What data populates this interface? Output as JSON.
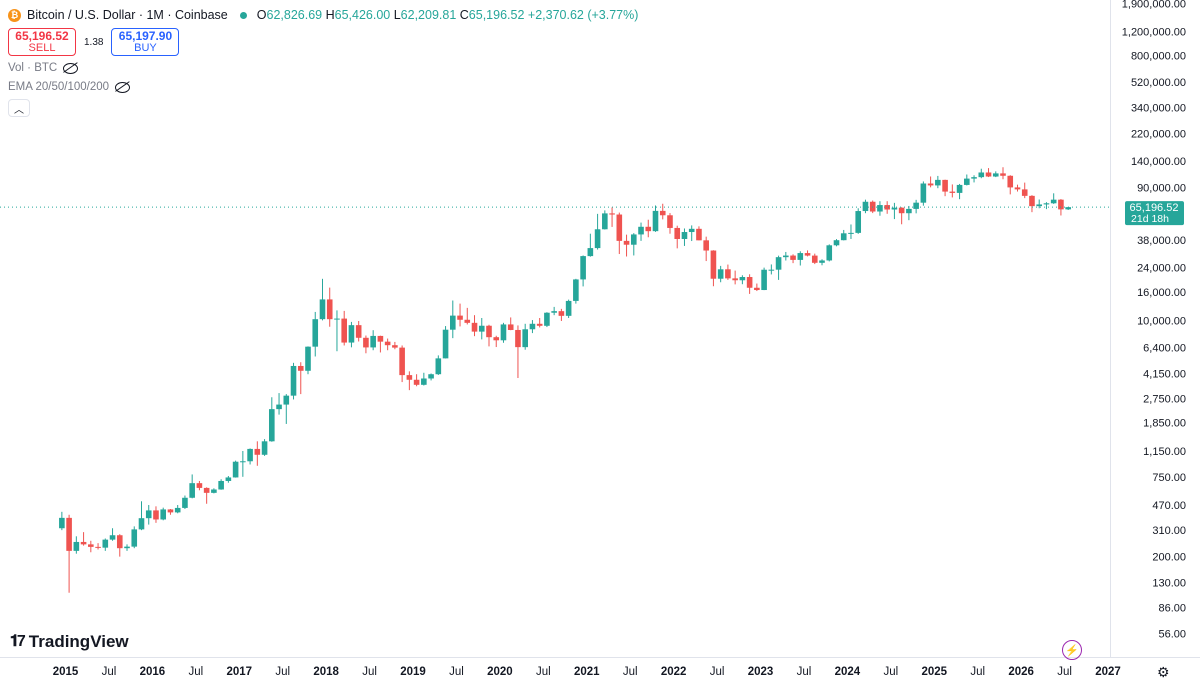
{
  "header": {
    "symbol_title": "Bitcoin / U.S. Dollar · 1M · Coinbase",
    "open_label": "O",
    "open": "62,826.69",
    "high_label": "H",
    "high": "65,426.00",
    "low_label": "L",
    "low": "62,209.81",
    "close_label": "C",
    "close": "65,196.52",
    "change": "+2,370.62 (+3.77%)"
  },
  "trade": {
    "sell_price": "65,196.52",
    "sell_label": "SELL",
    "spread": "1.38",
    "buy_price": "65,197.90",
    "buy_label": "BUY"
  },
  "indicators": {
    "vol": "Vol · BTC",
    "ema": "EMA 20/50/100/200"
  },
  "branding": {
    "logo_text": "TradingView"
  },
  "colors": {
    "up": "#26a69a",
    "down": "#ef5350",
    "price_line": "#26a69a",
    "grid": "#f0f3fa"
  },
  "chart_data": {
    "type": "candlestick",
    "scale": "log",
    "y_ticks": [
      56,
      86,
      130,
      200,
      310,
      470,
      750,
      1150,
      1850,
      2750,
      4150,
      6400,
      10000,
      16000,
      24000,
      38000,
      90000,
      140000,
      220000,
      340000,
      520000,
      800000,
      1200000,
      1900000
    ],
    "y_tick_labels": [
      "56.00",
      "86.00",
      "130.00",
      "200.00",
      "310.00",
      "470.00",
      "750.00",
      "1,150.00",
      "1,850.00",
      "2,750.00",
      "4,150.00",
      "6,400.00",
      "10,000.00",
      "16,000.00",
      "24,000.00",
      "38,000.00",
      "90,000.00",
      "140,000.00",
      "220,000.00",
      "340,000.00",
      "520,000.00",
      "800,000.00",
      "1,200,000.00",
      "1,900,000.00"
    ],
    "x_ticks": [
      "2015-01",
      "2015-07",
      "2016-01",
      "2016-07",
      "2017-01",
      "2017-07",
      "2018-01",
      "2018-07",
      "2019-01",
      "2019-07",
      "2020-01",
      "2020-07",
      "2021-01",
      "2021-07",
      "2022-01",
      "2022-07",
      "2023-01",
      "2023-07",
      "2024-01",
      "2024-07",
      "2025-01",
      "2025-07",
      "2026-01",
      "2026-07",
      "2027-01"
    ],
    "x_tick_labels": [
      "2015",
      "Jul",
      "2016",
      "Jul",
      "2017",
      "Jul",
      "2018",
      "Jul",
      "2019",
      "Jul",
      "2020",
      "Jul",
      "2021",
      "Jul",
      "2022",
      "Jul",
      "2023",
      "Jul",
      "2024",
      "Jul",
      "2025",
      "Jul",
      "2026",
      "Jul",
      "2027"
    ],
    "last_price": {
      "value": 65196.52,
      "label": "65,196.52",
      "countdown": "21d 18h"
    },
    "candles": [
      {
        "month": "2014-12",
        "o": 320,
        "h": 420,
        "l": 310,
        "c": 380
      },
      {
        "month": "2015-01",
        "o": 380,
        "h": 400,
        "l": 110,
        "c": 220
      },
      {
        "month": "2015-02",
        "o": 220,
        "h": 280,
        "l": 210,
        "c": 255
      },
      {
        "month": "2015-03",
        "o": 255,
        "h": 300,
        "l": 240,
        "c": 245
      },
      {
        "month": "2015-04",
        "o": 245,
        "h": 260,
        "l": 215,
        "c": 235
      },
      {
        "month": "2015-05",
        "o": 235,
        "h": 250,
        "l": 225,
        "c": 232
      },
      {
        "month": "2015-06",
        "o": 232,
        "h": 270,
        "l": 220,
        "c": 265
      },
      {
        "month": "2015-07",
        "o": 265,
        "h": 320,
        "l": 260,
        "c": 285
      },
      {
        "month": "2015-08",
        "o": 285,
        "h": 290,
        "l": 200,
        "c": 230
      },
      {
        "month": "2015-09",
        "o": 230,
        "h": 245,
        "l": 220,
        "c": 236
      },
      {
        "month": "2015-10",
        "o": 236,
        "h": 330,
        "l": 230,
        "c": 314
      },
      {
        "month": "2015-11",
        "o": 314,
        "h": 500,
        "l": 310,
        "c": 378
      },
      {
        "month": "2015-12",
        "o": 378,
        "h": 470,
        "l": 340,
        "c": 430
      },
      {
        "month": "2016-01",
        "o": 430,
        "h": 460,
        "l": 350,
        "c": 370
      },
      {
        "month": "2016-02",
        "o": 370,
        "h": 450,
        "l": 365,
        "c": 437
      },
      {
        "month": "2016-03",
        "o": 437,
        "h": 440,
        "l": 400,
        "c": 416
      },
      {
        "month": "2016-04",
        "o": 416,
        "h": 470,
        "l": 410,
        "c": 448
      },
      {
        "month": "2016-05",
        "o": 448,
        "h": 550,
        "l": 440,
        "c": 530
      },
      {
        "month": "2016-06",
        "o": 530,
        "h": 780,
        "l": 525,
        "c": 675
      },
      {
        "month": "2016-07",
        "o": 675,
        "h": 700,
        "l": 600,
        "c": 624
      },
      {
        "month": "2016-08",
        "o": 624,
        "h": 630,
        "l": 480,
        "c": 575
      },
      {
        "month": "2016-09",
        "o": 575,
        "h": 620,
        "l": 570,
        "c": 608
      },
      {
        "month": "2016-10",
        "o": 608,
        "h": 720,
        "l": 605,
        "c": 700
      },
      {
        "month": "2016-11",
        "o": 700,
        "h": 760,
        "l": 680,
        "c": 742
      },
      {
        "month": "2016-12",
        "o": 742,
        "h": 980,
        "l": 740,
        "c": 963
      },
      {
        "month": "2017-01",
        "o": 963,
        "h": 1150,
        "l": 750,
        "c": 970
      },
      {
        "month": "2017-02",
        "o": 970,
        "h": 1200,
        "l": 920,
        "c": 1190
      },
      {
        "month": "2017-03",
        "o": 1190,
        "h": 1350,
        "l": 900,
        "c": 1080
      },
      {
        "month": "2017-04",
        "o": 1080,
        "h": 1400,
        "l": 1060,
        "c": 1350
      },
      {
        "month": "2017-05",
        "o": 1350,
        "h": 2800,
        "l": 1340,
        "c": 2300
      },
      {
        "month": "2017-06",
        "o": 2300,
        "h": 3000,
        "l": 2100,
        "c": 2480
      },
      {
        "month": "2017-07",
        "o": 2480,
        "h": 2950,
        "l": 1800,
        "c": 2875
      },
      {
        "month": "2017-08",
        "o": 2875,
        "h": 4950,
        "l": 2700,
        "c": 4700
      },
      {
        "month": "2017-09",
        "o": 4700,
        "h": 5000,
        "l": 2950,
        "c": 4340
      },
      {
        "month": "2017-10",
        "o": 4340,
        "h": 6500,
        "l": 4100,
        "c": 6470
      },
      {
        "month": "2017-11",
        "o": 6470,
        "h": 11500,
        "l": 5500,
        "c": 10200
      },
      {
        "month": "2017-12",
        "o": 10200,
        "h": 19900,
        "l": 10000,
        "c": 14150
      },
      {
        "month": "2018-01",
        "o": 14150,
        "h": 17200,
        "l": 9000,
        "c": 10200
      },
      {
        "month": "2018-02",
        "o": 10200,
        "h": 11800,
        "l": 6000,
        "c": 10300
      },
      {
        "month": "2018-03",
        "o": 10300,
        "h": 11700,
        "l": 6600,
        "c": 6925
      },
      {
        "month": "2018-04",
        "o": 6925,
        "h": 9750,
        "l": 6400,
        "c": 9240
      },
      {
        "month": "2018-05",
        "o": 9240,
        "h": 9900,
        "l": 7050,
        "c": 7495
      },
      {
        "month": "2018-06",
        "o": 7495,
        "h": 7780,
        "l": 5800,
        "c": 6390
      },
      {
        "month": "2018-07",
        "o": 6390,
        "h": 8500,
        "l": 6100,
        "c": 7730
      },
      {
        "month": "2018-08",
        "o": 7730,
        "h": 7760,
        "l": 5880,
        "c": 7030
      },
      {
        "month": "2018-09",
        "o": 7030,
        "h": 7400,
        "l": 6100,
        "c": 6630
      },
      {
        "month": "2018-10",
        "o": 6630,
        "h": 7000,
        "l": 6200,
        "c": 6370
      },
      {
        "month": "2018-11",
        "o": 6370,
        "h": 6600,
        "l": 3600,
        "c": 4040
      },
      {
        "month": "2018-12",
        "o": 4040,
        "h": 4300,
        "l": 3150,
        "c": 3740
      },
      {
        "month": "2019-01",
        "o": 3740,
        "h": 4100,
        "l": 3360,
        "c": 3440
      },
      {
        "month": "2019-02",
        "o": 3440,
        "h": 4200,
        "l": 3400,
        "c": 3820
      },
      {
        "month": "2019-03",
        "o": 3820,
        "h": 4150,
        "l": 3700,
        "c": 4100
      },
      {
        "month": "2019-04",
        "o": 4100,
        "h": 5600,
        "l": 4050,
        "c": 5330
      },
      {
        "month": "2019-05",
        "o": 5330,
        "h": 9100,
        "l": 5320,
        "c": 8570
      },
      {
        "month": "2019-06",
        "o": 8570,
        "h": 13900,
        "l": 7450,
        "c": 10820
      },
      {
        "month": "2019-07",
        "o": 10820,
        "h": 13200,
        "l": 9050,
        "c": 10100
      },
      {
        "month": "2019-08",
        "o": 10100,
        "h": 12300,
        "l": 9350,
        "c": 9600
      },
      {
        "month": "2019-09",
        "o": 9600,
        "h": 10900,
        "l": 7700,
        "c": 8300
      },
      {
        "month": "2019-10",
        "o": 8300,
        "h": 10400,
        "l": 7300,
        "c": 9150
      },
      {
        "month": "2019-11",
        "o": 9150,
        "h": 9300,
        "l": 6500,
        "c": 7570
      },
      {
        "month": "2019-12",
        "o": 7570,
        "h": 7750,
        "l": 6430,
        "c": 7190
      },
      {
        "month": "2020-01",
        "o": 7190,
        "h": 9600,
        "l": 6900,
        "c": 9350
      },
      {
        "month": "2020-02",
        "o": 9350,
        "h": 10500,
        "l": 8500,
        "c": 8530
      },
      {
        "month": "2020-03",
        "o": 8530,
        "h": 9200,
        "l": 3850,
        "c": 6420
      },
      {
        "month": "2020-04",
        "o": 6420,
        "h": 9450,
        "l": 6150,
        "c": 8630
      },
      {
        "month": "2020-05",
        "o": 8630,
        "h": 10050,
        "l": 8100,
        "c": 9450
      },
      {
        "month": "2020-06",
        "o": 9450,
        "h": 10400,
        "l": 8900,
        "c": 9140
      },
      {
        "month": "2020-07",
        "o": 9140,
        "h": 11450,
        "l": 8950,
        "c": 11350
      },
      {
        "month": "2020-08",
        "o": 11350,
        "h": 12500,
        "l": 10900,
        "c": 11650
      },
      {
        "month": "2020-09",
        "o": 11650,
        "h": 12100,
        "l": 9900,
        "c": 10780
      },
      {
        "month": "2020-10",
        "o": 10780,
        "h": 14100,
        "l": 10400,
        "c": 13800
      },
      {
        "month": "2020-11",
        "o": 13800,
        "h": 19900,
        "l": 13200,
        "c": 19700
      },
      {
        "month": "2020-12",
        "o": 19700,
        "h": 29300,
        "l": 17550,
        "c": 28990
      },
      {
        "month": "2021-01",
        "o": 28990,
        "h": 42000,
        "l": 28700,
        "c": 33100
      },
      {
        "month": "2021-02",
        "o": 33100,
        "h": 58350,
        "l": 32300,
        "c": 45200
      },
      {
        "month": "2021-03",
        "o": 45200,
        "h": 61800,
        "l": 45000,
        "c": 58800
      },
      {
        "month": "2021-04",
        "o": 58800,
        "h": 64900,
        "l": 47000,
        "c": 57700
      },
      {
        "month": "2021-05",
        "o": 57700,
        "h": 59600,
        "l": 30000,
        "c": 37300
      },
      {
        "month": "2021-06",
        "o": 37300,
        "h": 41350,
        "l": 28800,
        "c": 35000
      },
      {
        "month": "2021-07",
        "o": 35000,
        "h": 42400,
        "l": 29300,
        "c": 41500
      },
      {
        "month": "2021-08",
        "o": 41500,
        "h": 50500,
        "l": 37300,
        "c": 47100
      },
      {
        "month": "2021-09",
        "o": 47100,
        "h": 52950,
        "l": 39600,
        "c": 43800
      },
      {
        "month": "2021-10",
        "o": 43800,
        "h": 67000,
        "l": 43300,
        "c": 61300
      },
      {
        "month": "2021-11",
        "o": 61300,
        "h": 69000,
        "l": 53250,
        "c": 57000
      },
      {
        "month": "2021-12",
        "o": 57000,
        "h": 59100,
        "l": 42000,
        "c": 46200
      },
      {
        "month": "2022-01",
        "o": 46200,
        "h": 47950,
        "l": 32950,
        "c": 38480
      },
      {
        "month": "2022-02",
        "o": 38480,
        "h": 45800,
        "l": 34300,
        "c": 43190
      },
      {
        "month": "2022-03",
        "o": 43190,
        "h": 48200,
        "l": 37200,
        "c": 45540
      },
      {
        "month": "2022-04",
        "o": 45540,
        "h": 47450,
        "l": 37650,
        "c": 37640
      },
      {
        "month": "2022-05",
        "o": 37640,
        "h": 40000,
        "l": 26700,
        "c": 31790
      },
      {
        "month": "2022-06",
        "o": 31790,
        "h": 31950,
        "l": 17600,
        "c": 19930
      },
      {
        "month": "2022-07",
        "o": 19930,
        "h": 24650,
        "l": 18800,
        "c": 23300
      },
      {
        "month": "2022-08",
        "o": 23300,
        "h": 25200,
        "l": 19550,
        "c": 20050
      },
      {
        "month": "2022-09",
        "o": 20050,
        "h": 22800,
        "l": 18150,
        "c": 19430
      },
      {
        "month": "2022-10",
        "o": 19430,
        "h": 21100,
        "l": 18200,
        "c": 20500
      },
      {
        "month": "2022-11",
        "o": 20500,
        "h": 21450,
        "l": 15500,
        "c": 17160
      },
      {
        "month": "2022-12",
        "o": 17160,
        "h": 18400,
        "l": 16250,
        "c": 16530
      },
      {
        "month": "2023-01",
        "o": 16530,
        "h": 23950,
        "l": 16500,
        "c": 23130
      },
      {
        "month": "2023-02",
        "o": 23130,
        "h": 25250,
        "l": 21400,
        "c": 23150
      },
      {
        "month": "2023-03",
        "o": 23150,
        "h": 29200,
        "l": 19550,
        "c": 28480
      },
      {
        "month": "2023-04",
        "o": 28480,
        "h": 31050,
        "l": 26950,
        "c": 29250
      },
      {
        "month": "2023-05",
        "o": 29250,
        "h": 29850,
        "l": 25800,
        "c": 27220
      },
      {
        "month": "2023-06",
        "o": 27220,
        "h": 31400,
        "l": 24800,
        "c": 30480
      },
      {
        "month": "2023-07",
        "o": 30480,
        "h": 31850,
        "l": 28850,
        "c": 29230
      },
      {
        "month": "2023-08",
        "o": 29230,
        "h": 30200,
        "l": 25400,
        "c": 25940
      },
      {
        "month": "2023-09",
        "o": 25940,
        "h": 27500,
        "l": 24900,
        "c": 26970
      },
      {
        "month": "2023-10",
        "o": 26970,
        "h": 35200,
        "l": 26550,
        "c": 34660
      },
      {
        "month": "2023-11",
        "o": 34660,
        "h": 38400,
        "l": 34100,
        "c": 37720
      },
      {
        "month": "2023-12",
        "o": 37720,
        "h": 44700,
        "l": 37600,
        "c": 42280
      },
      {
        "month": "2024-01",
        "o": 42280,
        "h": 48950,
        "l": 38500,
        "c": 42580
      },
      {
        "month": "2024-02",
        "o": 42580,
        "h": 64000,
        "l": 41900,
        "c": 61130
      },
      {
        "month": "2024-03",
        "o": 61130,
        "h": 73800,
        "l": 59000,
        "c": 71290
      },
      {
        "month": "2024-04",
        "o": 71290,
        "h": 72750,
        "l": 59100,
        "c": 60640
      },
      {
        "month": "2024-05",
        "o": 60640,
        "h": 71950,
        "l": 56550,
        "c": 67490
      },
      {
        "month": "2024-06",
        "o": 67490,
        "h": 71950,
        "l": 58400,
        "c": 62690
      },
      {
        "month": "2024-07",
        "o": 62690,
        "h": 70000,
        "l": 53500,
        "c": 64620
      },
      {
        "month": "2024-08",
        "o": 64620,
        "h": 65100,
        "l": 49100,
        "c": 58970
      },
      {
        "month": "2024-09",
        "o": 58970,
        "h": 66500,
        "l": 52550,
        "c": 63330
      },
      {
        "month": "2024-10",
        "o": 63330,
        "h": 73600,
        "l": 58850,
        "c": 70210
      },
      {
        "month": "2024-11",
        "o": 70210,
        "h": 99800,
        "l": 66800,
        "c": 96450
      },
      {
        "month": "2024-12",
        "o": 96450,
        "h": 108350,
        "l": 90500,
        "c": 93430
      },
      {
        "month": "2025-01",
        "o": 93430,
        "h": 109350,
        "l": 89250,
        "c": 102400
      },
      {
        "month": "2025-02",
        "o": 102400,
        "h": 102750,
        "l": 78200,
        "c": 84350
      },
      {
        "month": "2025-03",
        "o": 84350,
        "h": 95000,
        "l": 76600,
        "c": 82550
      },
      {
        "month": "2025-04",
        "o": 82550,
        "h": 95750,
        "l": 74400,
        "c": 94200
      },
      {
        "month": "2025-05",
        "o": 94200,
        "h": 111950,
        "l": 93400,
        "c": 104600
      },
      {
        "month": "2025-06",
        "o": 104600,
        "h": 110500,
        "l": 98200,
        "c": 107150
      },
      {
        "month": "2025-07",
        "o": 107150,
        "h": 123200,
        "l": 105250,
        "c": 115750
      },
      {
        "month": "2025-08",
        "o": 115750,
        "h": 124450,
        "l": 107300,
        "c": 108250
      },
      {
        "month": "2025-09",
        "o": 108250,
        "h": 117900,
        "l": 107250,
        "c": 114050
      },
      {
        "month": "2025-10",
        "o": 114050,
        "h": 126250,
        "l": 103500,
        "c": 109600
      },
      {
        "month": "2025-11",
        "o": 109600,
        "h": 110650,
        "l": 80550,
        "c": 90400
      },
      {
        "month": "2025-12",
        "o": 90400,
        "h": 94600,
        "l": 84450,
        "c": 87500
      },
      {
        "month": "2026-01",
        "o": 87500,
        "h": 97900,
        "l": 75700,
        "c": 78600
      },
      {
        "month": "2026-02",
        "o": 78600,
        "h": 79500,
        "l": 60000,
        "c": 66300
      },
      {
        "month": "2026-03",
        "o": 66300,
        "h": 74000,
        "l": 64000,
        "c": 68200
      },
      {
        "month": "2026-04",
        "o": 68200,
        "h": 70800,
        "l": 63100,
        "c": 69500
      },
      {
        "month": "2026-05",
        "o": 69500,
        "h": 82000,
        "l": 68800,
        "c": 73800
      },
      {
        "month": "2026-06",
        "o": 73800,
        "h": 74500,
        "l": 56800,
        "c": 62830
      },
      {
        "month": "2026-07",
        "o": 62830,
        "h": 65430,
        "l": 62210,
        "c": 65196.52
      }
    ]
  }
}
